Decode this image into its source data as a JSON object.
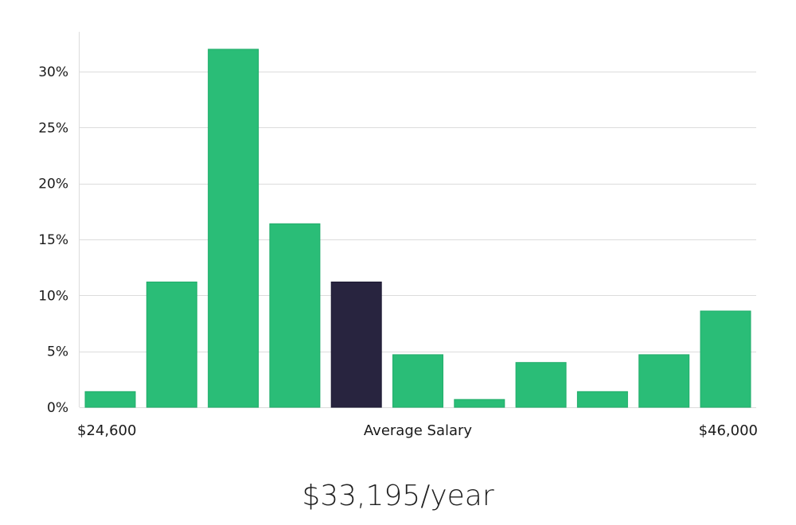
{
  "chart_data": {
    "type": "bar",
    "categories": [
      "1",
      "2",
      "3",
      "4",
      "5",
      "6",
      "7",
      "8",
      "9",
      "10",
      "11"
    ],
    "values": [
      1.4,
      11.2,
      32.0,
      16.4,
      11.2,
      4.7,
      0.7,
      4.0,
      1.4,
      4.7,
      8.6
    ],
    "highlight_index": 4,
    "ylim": [
      0,
      30
    ],
    "ymax_display": 33,
    "yticks": [
      0,
      5,
      10,
      15,
      20,
      25,
      30
    ],
    "ytick_labels": [
      "0%",
      "5%",
      "10%",
      "15%",
      "20%",
      "25%",
      "30%"
    ],
    "x_min_label": "$24,600",
    "x_center_label": "Average Salary",
    "x_max_label": "$46,000",
    "grid": true,
    "colors": {
      "bar": "#2abd77",
      "highlight": "#28243f"
    }
  },
  "headline": "$33,195/year"
}
